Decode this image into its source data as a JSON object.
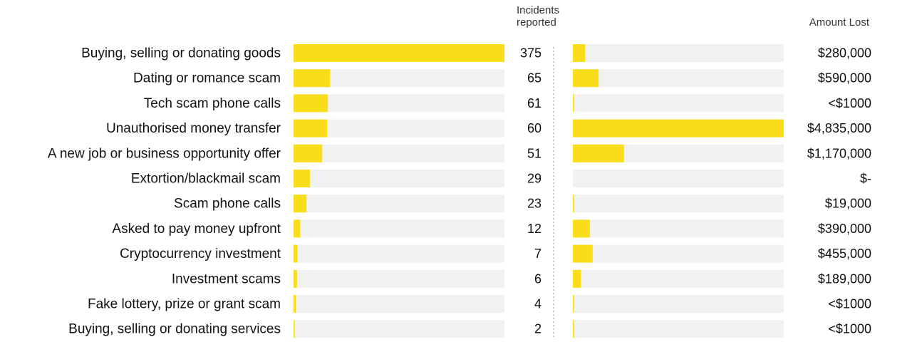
{
  "colors": {
    "bar": "#f8dd1b",
    "track": "#f2f1f1",
    "divider": "#9a9a9a",
    "text": "#111111"
  },
  "headers": {
    "incidents_line1": "Incidents",
    "incidents_line2": "reported",
    "amount": "Amount Lost"
  },
  "chart_data": {
    "type": "bar",
    "orientation": "horizontal",
    "categories": [
      "Buying, selling or donating goods",
      "Dating or romance scam",
      "Tech scam phone calls",
      "Unauthorised money transfer",
      "A new job or business opportunity offer",
      "Extortion/blackmail scam",
      "Scam phone calls",
      "Asked to pay money upfront",
      "Cryptocurrency investment",
      "Investment scams",
      "Fake lottery, prize or grant scam",
      "Buying, selling or donating services"
    ],
    "series": [
      {
        "name": "Incidents reported",
        "values": [
          375,
          65,
          61,
          60,
          51,
          29,
          23,
          12,
          7,
          6,
          4,
          2
        ],
        "labels": [
          "375",
          "65",
          "61",
          "60",
          "51",
          "29",
          "23",
          "12",
          "7",
          "6",
          "4",
          "2"
        ],
        "max": 375
      },
      {
        "name": "Amount Lost",
        "values": [
          280000,
          590000,
          1000,
          4835000,
          1170000,
          0,
          19000,
          390000,
          455000,
          189000,
          1000,
          1000
        ],
        "labels": [
          "$280,000",
          "$590,000",
          "<$1000",
          "$4,835,000",
          "$1,170,000",
          "$-",
          "$19,000",
          "$390,000",
          "$455,000",
          "$189,000",
          "<$1000",
          "<$1000"
        ],
        "max": 4835000
      }
    ],
    "legend": "none",
    "grid": false
  }
}
